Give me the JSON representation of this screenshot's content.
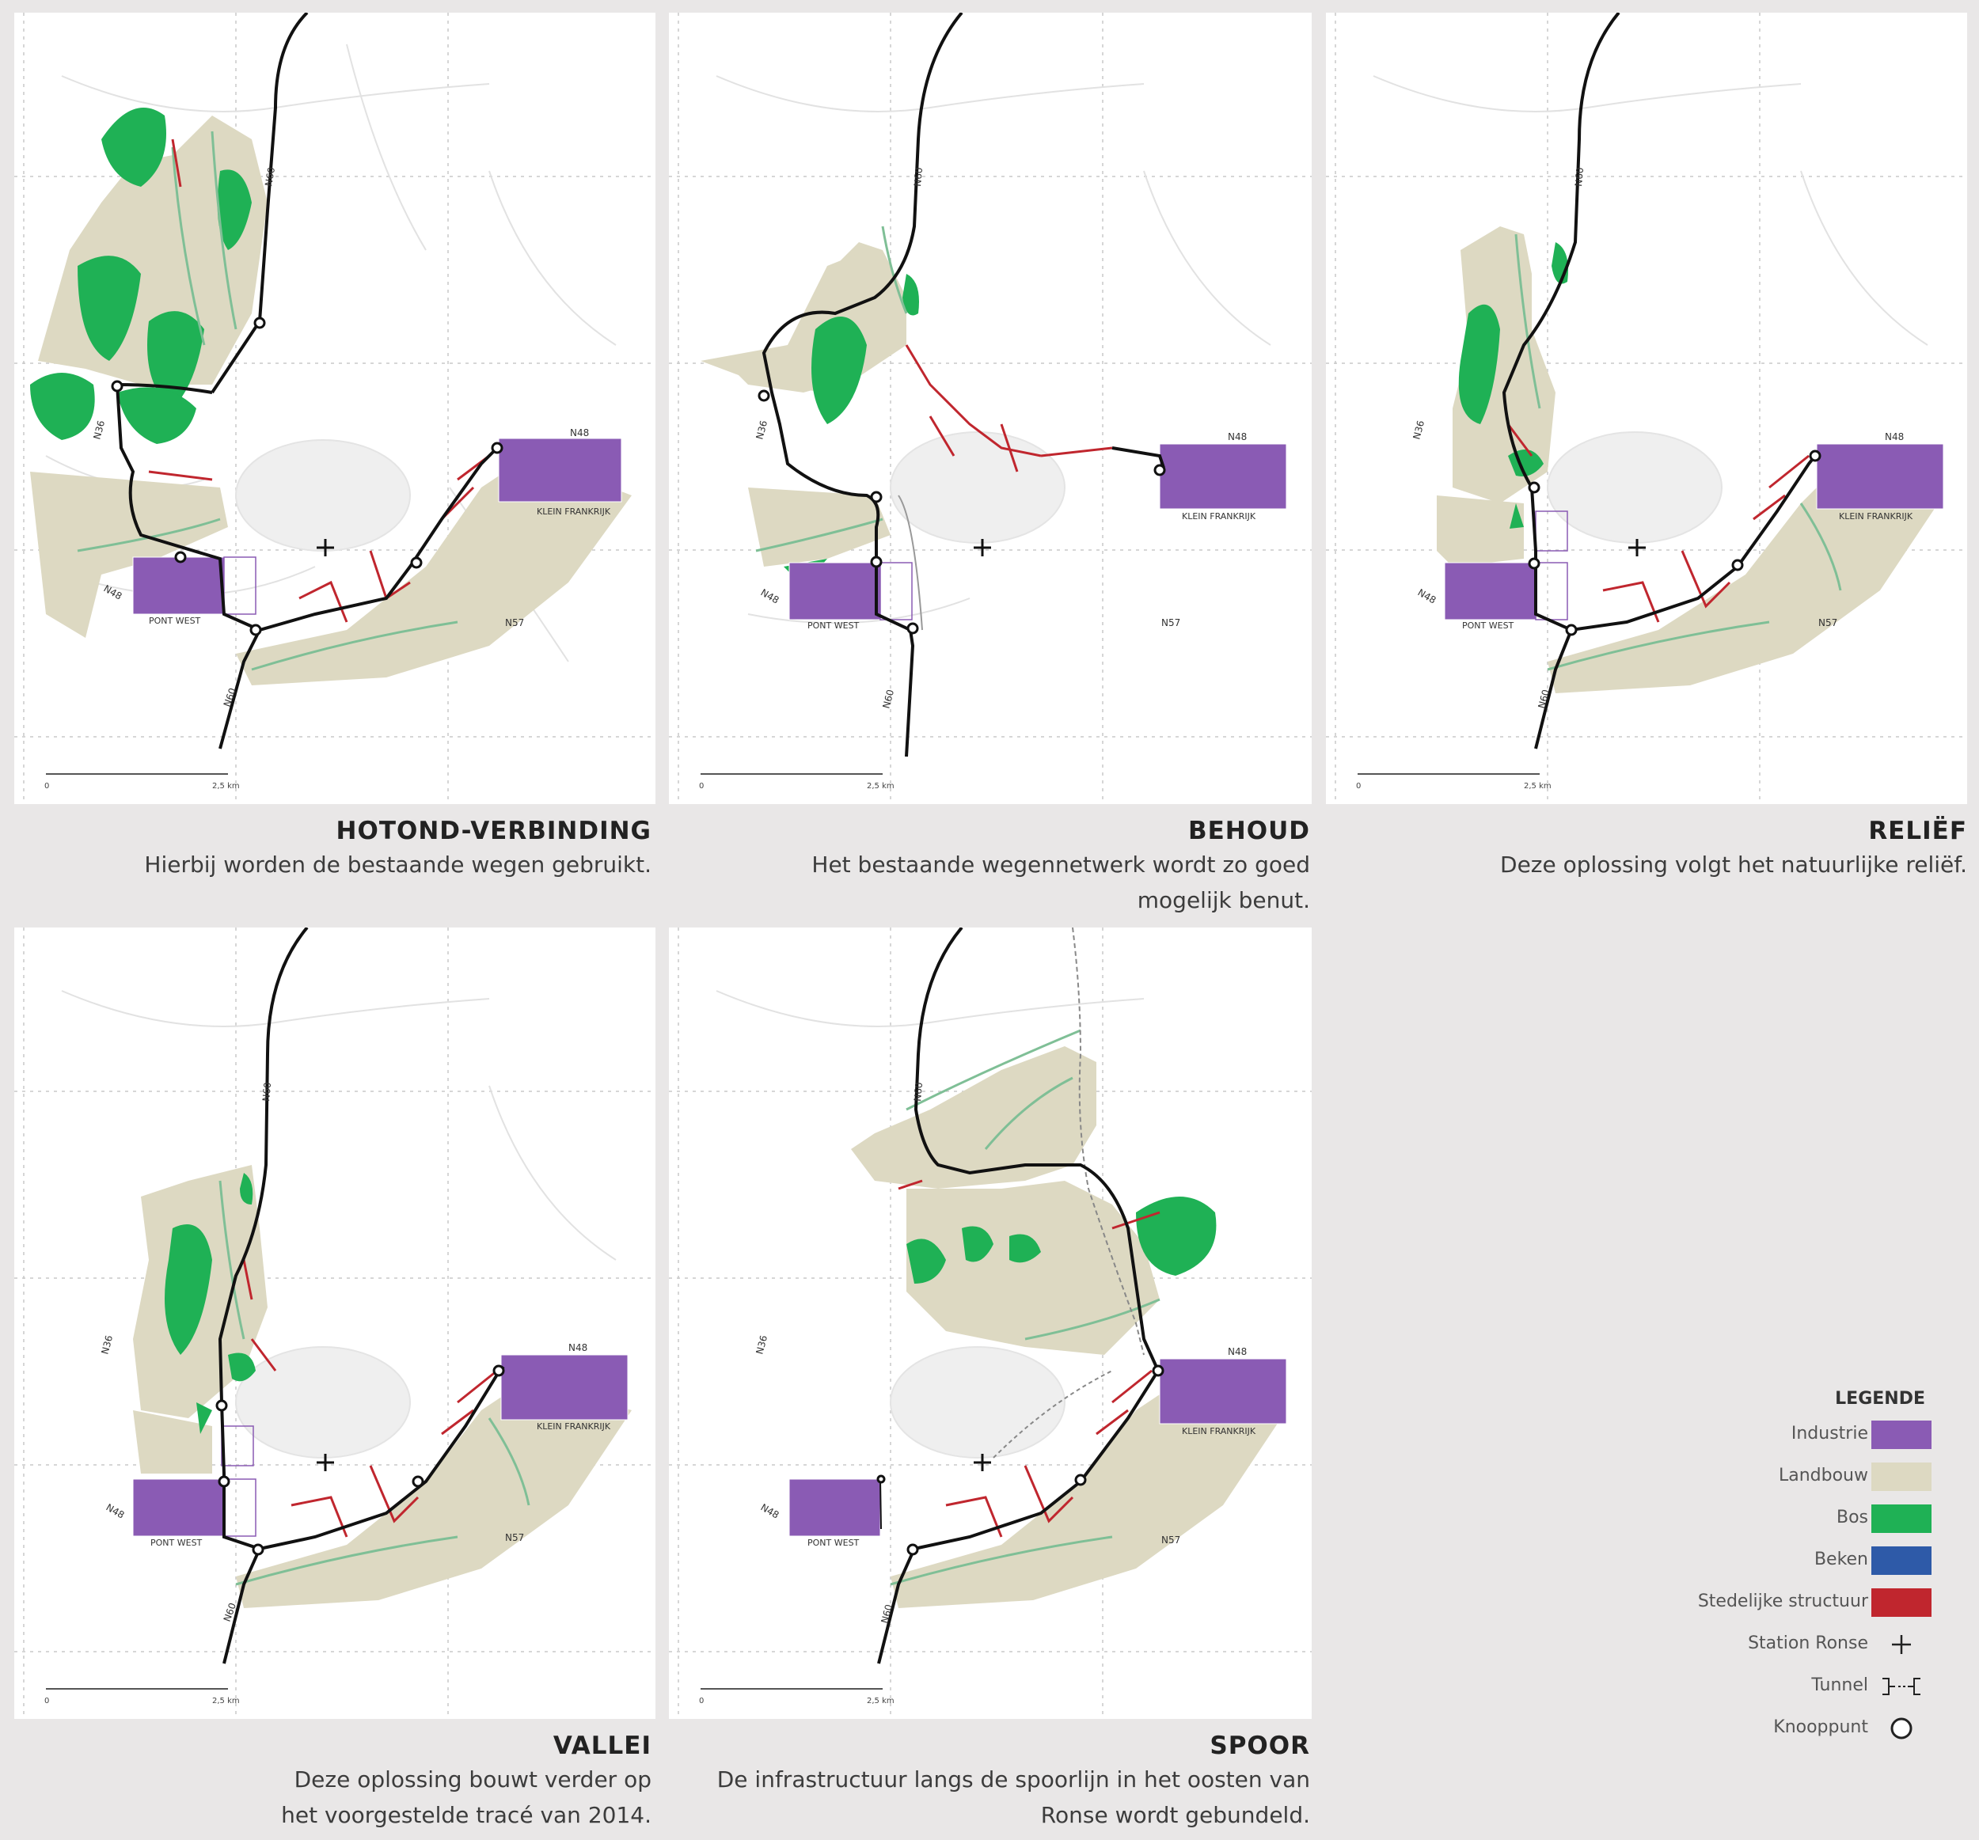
{
  "panels": [
    {
      "id": "hotond",
      "title": "HOTOND-VERBINDING",
      "description": "Hierbij worden de bestaande wegen gebruikt."
    },
    {
      "id": "behoud",
      "title": "BEHOUD",
      "description": "Het bestaande wegennetwerk wordt zo goed mogelijk benut."
    },
    {
      "id": "relief",
      "title": "RELIËF",
      "description": "Deze oplossing volgt het natuurlijke reliëf."
    },
    {
      "id": "vallei",
      "title": "VALLEI",
      "description": "Deze oplossing bouwt verder op het voorgestelde tracé van 2014."
    },
    {
      "id": "spoor",
      "title": "SPOOR",
      "description": "De infrastructuur langs de spoorlijn in het oosten van Ronse wordt gebundeld."
    }
  ],
  "map_labels": {
    "n60": "N60",
    "n36": "N36",
    "n48": "N48",
    "n57": "N57",
    "pont_west": "PONT WEST",
    "klein_frankrijk": "KLEIN FRANKRIJK",
    "scale_start": "0",
    "scale_end": "2,5 km"
  },
  "legend": {
    "title": "LEGENDE",
    "items": [
      {
        "label": "Industrie",
        "color": "#8a5bb4",
        "kind": "swatch"
      },
      {
        "label": "Landbouw",
        "color": "#ddd9c2",
        "kind": "swatch"
      },
      {
        "label": "Bos",
        "color": "#1fb155",
        "kind": "swatch"
      },
      {
        "label": "Beken",
        "color": "#2e5aa8",
        "kind": "swatch"
      },
      {
        "label": "Stedelijke structuur",
        "color": "#c0262e",
        "kind": "swatch"
      },
      {
        "label": "Station Ronse",
        "icon": "plus-icon",
        "kind": "symbol"
      },
      {
        "label": "Tunnel",
        "icon": "tunnel-icon",
        "kind": "symbol"
      },
      {
        "label": "Knooppunt",
        "icon": "circle-node-icon",
        "kind": "symbol"
      }
    ]
  },
  "colors": {
    "industry": "#8a5bb4",
    "agriculture": "#ddd9c2",
    "forest": "#1fb155",
    "stream": "#2e5aa8",
    "urban": "#c0262e",
    "road": "#111111",
    "grid": "#c8c8c8",
    "background": "#e9e7e7"
  }
}
